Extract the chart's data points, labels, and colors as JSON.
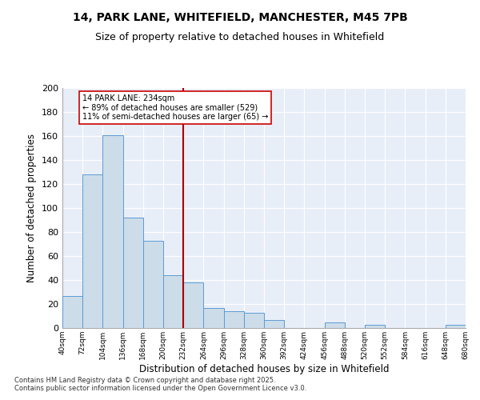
{
  "title_line1": "14, PARK LANE, WHITEFIELD, MANCHESTER, M45 7PB",
  "title_line2": "Size of property relative to detached houses in Whitefield",
  "xlabel": "Distribution of detached houses by size in Whitefield",
  "ylabel": "Number of detached properties",
  "bin_starts": [
    40,
    72,
    104,
    136,
    168,
    200,
    232,
    264,
    296,
    328,
    360,
    392,
    424,
    456,
    488,
    520,
    552,
    584,
    616,
    648
  ],
  "bin_labels": [
    "40sqm",
    "72sqm",
    "104sqm",
    "136sqm",
    "168sqm",
    "200sqm",
    "232sqm",
    "264sqm",
    "296sqm",
    "328sqm",
    "360sqm",
    "392sqm",
    "424sqm",
    "456sqm",
    "488sqm",
    "520sqm",
    "552sqm",
    "584sqm",
    "616sqm",
    "648sqm",
    "680sqm"
  ],
  "counts": [
    27,
    128,
    161,
    92,
    73,
    44,
    38,
    17,
    14,
    13,
    7,
    0,
    0,
    5,
    0,
    3,
    0,
    0,
    0,
    3
  ],
  "bar_color": "#ccdce8",
  "bar_edge_color": "#5b9bd5",
  "vline_x": 232,
  "vline_color": "#aa0000",
  "annotation_line1": "14 PARK LANE: 234sqm",
  "annotation_line2": "← 89% of detached houses are smaller (529)",
  "annotation_line3": "11% of semi-detached houses are larger (65) →",
  "annotation_box_color": "#cc0000",
  "ylim": [
    0,
    200
  ],
  "yticks": [
    0,
    20,
    40,
    60,
    80,
    100,
    120,
    140,
    160,
    180,
    200
  ],
  "background_color": "#e8eef8",
  "footnote": "Contains HM Land Registry data © Crown copyright and database right 2025.\nContains public sector information licensed under the Open Government Licence v3.0."
}
